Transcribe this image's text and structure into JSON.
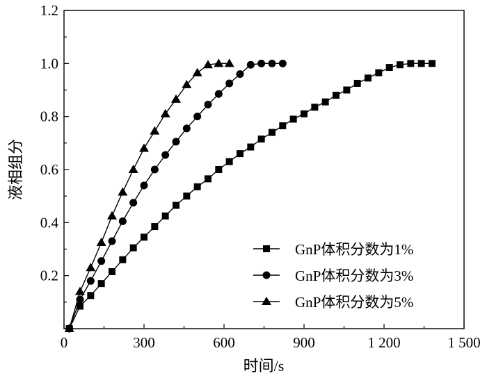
{
  "chart_data": {
    "type": "line",
    "title": "",
    "xlabel": "时间/s",
    "ylabel": "液相组分",
    "xlim": [
      0,
      1500
    ],
    "ylim": [
      0,
      1.2
    ],
    "xticks": [
      0,
      300,
      600,
      900,
      1200,
      1500
    ],
    "xtick_labels": [
      "0",
      "300",
      "600",
      "900",
      "1 200",
      "1 500"
    ],
    "yticks": [
      0.2,
      0.4,
      0.6,
      0.8,
      1.0,
      1.2
    ],
    "ytick_labels": [
      "0.2",
      "0.4",
      "0.6",
      "0.8",
      "1.0",
      "1.2"
    ],
    "grid": false,
    "legend_position": "bottom-right",
    "series": [
      {
        "name": "GnP体积分数为1%",
        "marker": "square",
        "x": [
          20,
          60,
          100,
          140,
          180,
          220,
          260,
          300,
          340,
          380,
          420,
          460,
          500,
          540,
          580,
          620,
          660,
          700,
          740,
          780,
          820,
          860,
          900,
          940,
          980,
          1020,
          1060,
          1100,
          1140,
          1180,
          1220,
          1260,
          1300,
          1340,
          1380
        ],
        "y": [
          0.0,
          0.085,
          0.125,
          0.17,
          0.215,
          0.26,
          0.305,
          0.345,
          0.385,
          0.425,
          0.465,
          0.5,
          0.535,
          0.565,
          0.6,
          0.63,
          0.66,
          0.685,
          0.715,
          0.74,
          0.765,
          0.79,
          0.81,
          0.835,
          0.855,
          0.88,
          0.9,
          0.925,
          0.945,
          0.965,
          0.985,
          0.995,
          1.0,
          1.0,
          1.0
        ]
      },
      {
        "name": "GnP体积分数为3%",
        "marker": "circle",
        "x": [
          20,
          60,
          100,
          140,
          180,
          220,
          260,
          300,
          340,
          380,
          420,
          460,
          500,
          540,
          580,
          620,
          660,
          700,
          740,
          780,
          820
        ],
        "y": [
          0.0,
          0.11,
          0.18,
          0.255,
          0.33,
          0.405,
          0.475,
          0.54,
          0.6,
          0.655,
          0.705,
          0.755,
          0.8,
          0.845,
          0.885,
          0.925,
          0.96,
          0.995,
          1.0,
          1.0,
          1.0
        ]
      },
      {
        "name": "GnP体积分数为5%",
        "marker": "triangle",
        "x": [
          20,
          60,
          100,
          140,
          180,
          220,
          260,
          300,
          340,
          380,
          420,
          460,
          500,
          540,
          580,
          620
        ],
        "y": [
          0.0,
          0.14,
          0.23,
          0.325,
          0.425,
          0.515,
          0.6,
          0.68,
          0.745,
          0.81,
          0.865,
          0.92,
          0.965,
          0.995,
          1.0,
          1.0
        ]
      }
    ]
  }
}
